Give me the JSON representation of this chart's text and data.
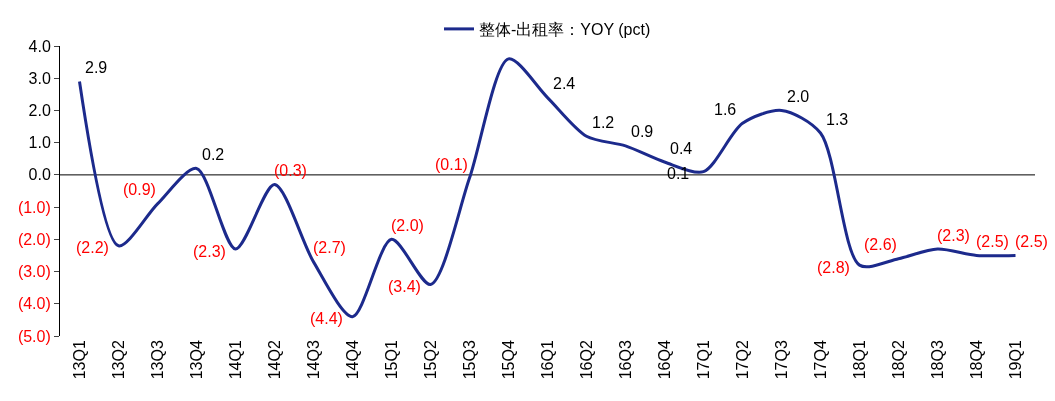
{
  "chart_data": {
    "type": "line",
    "categories": [
      "13Q1",
      "13Q2",
      "13Q3",
      "13Q4",
      "14Q1",
      "14Q2",
      "14Q3",
      "14Q4",
      "15Q1",
      "15Q2",
      "15Q3",
      "15Q4",
      "16Q1",
      "16Q2",
      "16Q3",
      "16Q4",
      "17Q1",
      "17Q2",
      "17Q3",
      "17Q4",
      "18Q1",
      "18Q2",
      "18Q3",
      "18Q4",
      "19Q1"
    ],
    "series": [
      {
        "name": "整体-出租率：YOY (pct)",
        "color": "#1c2a8c",
        "values": [
          2.9,
          -2.2,
          -0.9,
          0.2,
          -2.3,
          -0.3,
          -2.7,
          -4.4,
          -2.0,
          -3.4,
          -0.1,
          3.6,
          2.4,
          1.2,
          0.9,
          0.4,
          0.1,
          1.6,
          2.0,
          1.3,
          -2.8,
          -2.6,
          -2.3,
          -2.5,
          -2.5
        ],
        "value_labels": [
          "2.9",
          "(2.2)",
          "(0.9)",
          "0.2",
          "(2.3)",
          "(0.3)",
          "(2.7)",
          "(4.4)",
          "(2.0)",
          "(3.4)",
          "(0.1)",
          null,
          "2.4",
          "1.2",
          "0.9",
          "0.4",
          "0.1",
          "1.6",
          "2.0",
          "1.3",
          "(2.8)",
          "(2.6)",
          "(2.3)",
          "(2.5)",
          "(2.5)"
        ]
      }
    ],
    "ylim": [
      -5,
      4
    ],
    "yticks": [
      {
        "value": 4,
        "label": "4.0"
      },
      {
        "value": 3,
        "label": "3.0"
      },
      {
        "value": 2,
        "label": "2.0"
      },
      {
        "value": 1,
        "label": "1.0"
      },
      {
        "value": 0,
        "label": "0.0"
      },
      {
        "value": -1,
        "label": "(1.0)"
      },
      {
        "value": -2,
        "label": "(2.0)"
      },
      {
        "value": -3,
        "label": "(3.0)"
      },
      {
        "value": -4,
        "label": "(4.0)"
      },
      {
        "value": -5,
        "label": "(5.0)"
      }
    ],
    "ref_lines": [
      {
        "axis": "y",
        "value": 0,
        "color": "#000000",
        "line_style": "solid"
      }
    ],
    "grid": false,
    "legend": "top",
    "line_style": "solid",
    "marker": "none"
  }
}
